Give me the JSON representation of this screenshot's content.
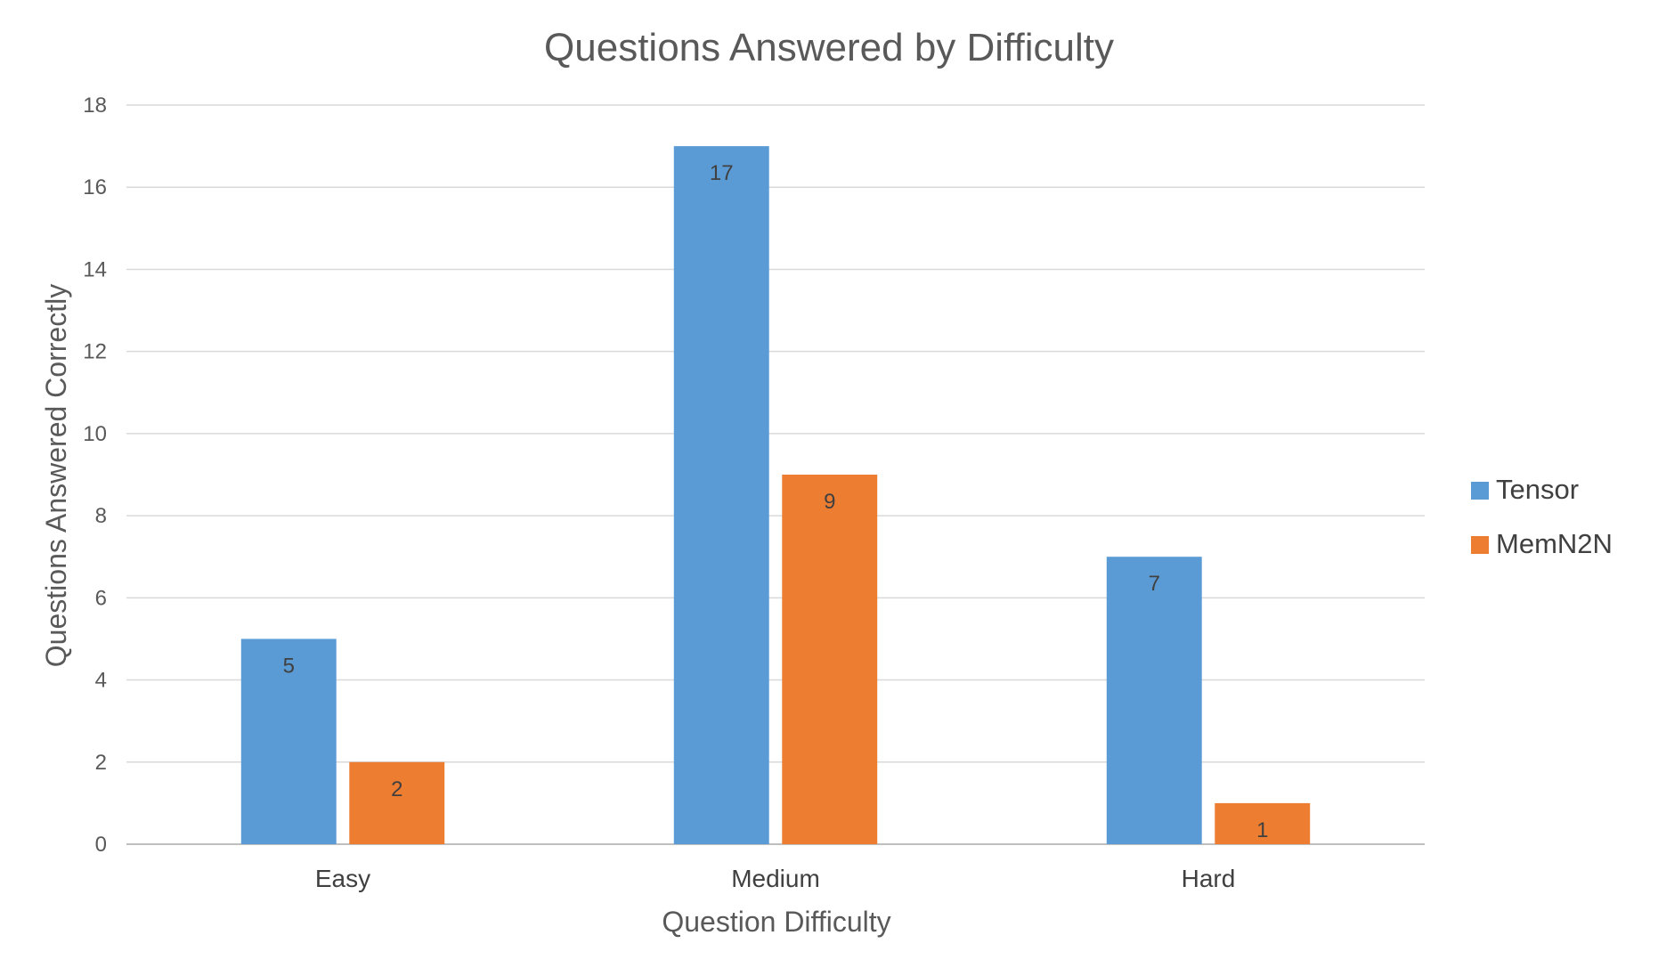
{
  "chart_data": {
    "type": "bar",
    "title": "Questions Answered by Difficulty",
    "xlabel": "Question Difficulty",
    "ylabel": "Questions Answered Correctly",
    "categories": [
      "Easy",
      "Medium",
      "Hard"
    ],
    "series": [
      {
        "name": "Tensor",
        "values": [
          5,
          17,
          7
        ],
        "color": "#5B9BD5"
      },
      {
        "name": "MemN2N",
        "values": [
          2,
          9,
          1
        ],
        "color": "#ED7D31"
      }
    ],
    "ylim": [
      0,
      18
    ],
    "yticks": [
      0,
      2,
      4,
      6,
      8,
      10,
      12,
      14,
      16,
      18
    ],
    "grid": true,
    "legend": "right",
    "data_labels": true
  }
}
